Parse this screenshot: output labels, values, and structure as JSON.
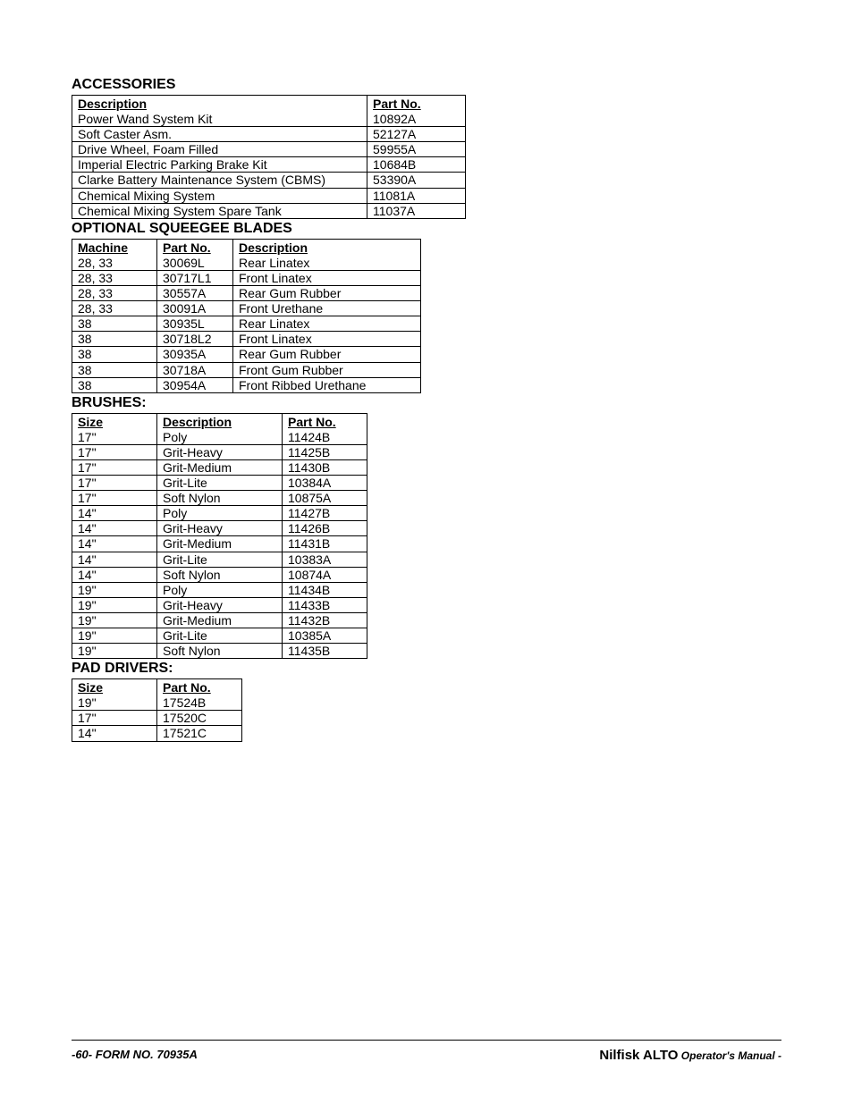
{
  "accessories": {
    "title": "ACCESSORIES",
    "headers": {
      "desc": "Description",
      "part": "Part No."
    },
    "col_widths": [
      "330px",
      "110px"
    ],
    "rows": [
      {
        "desc": "Power Wand System Kit",
        "part": "10892A"
      },
      {
        "desc": "Soft Caster Asm.",
        "part": "52127A"
      },
      {
        "desc": "Drive Wheel, Foam Filled",
        "part": "59955A"
      },
      {
        "desc": "Imperial Electric Parking Brake Kit",
        "part": "10684B"
      },
      {
        "desc": "Clarke Battery Maintenance System (CBMS)",
        "part": "53390A"
      },
      {
        "desc": "Chemical Mixing System",
        "part": "11081A"
      },
      {
        "desc": "Chemical Mixing System Spare Tank",
        "part": "11037A"
      }
    ]
  },
  "squeegee": {
    "title": "OPTIONAL SQUEEGEE BLADES",
    "headers": {
      "machine": "Machine",
      "part": "Part No.",
      "desc": "Description"
    },
    "col_widths": [
      "95px",
      "85px",
      "210px"
    ],
    "rows": [
      {
        "machine": "28, 33",
        "part": "30069L",
        "desc": "Rear Linatex"
      },
      {
        "machine": "28, 33",
        "part": "30717L1",
        "desc": "Front Linatex"
      },
      {
        "machine": "28, 33",
        "part": "30557A",
        "desc": "Rear Gum Rubber"
      },
      {
        "machine": "28, 33",
        "part": "30091A",
        "desc": "Front Urethane"
      },
      {
        "machine": "38",
        "part": "30935L",
        "desc": "Rear Linatex"
      },
      {
        "machine": "38",
        "part": "30718L2",
        "desc": "Front Linatex"
      },
      {
        "machine": "38",
        "part": "30935A",
        "desc": "Rear Gum Rubber"
      },
      {
        "machine": "38",
        "part": "30718A",
        "desc": "Front Gum Rubber"
      },
      {
        "machine": "38",
        "part": "30954A",
        "desc": "Front Ribbed Urethane"
      }
    ]
  },
  "brushes": {
    "title": "BRUSHES:",
    "headers": {
      "size": "Size",
      "desc": "Description",
      "part": "Part No."
    },
    "col_widths": [
      "95px",
      "140px",
      "95px"
    ],
    "rows": [
      {
        "size": "17\"",
        "desc": "Poly",
        "part": "11424B"
      },
      {
        "size": "17\"",
        "desc": "Grit-Heavy",
        "part": "11425B"
      },
      {
        "size": "17\"",
        "desc": "Grit-Medium",
        "part": "11430B"
      },
      {
        "size": "17\"",
        "desc": "Grit-Lite",
        "part": "10384A"
      },
      {
        "size": "17\"",
        "desc": "Soft Nylon",
        "part": "10875A"
      },
      {
        "size": "14\"",
        "desc": "Poly",
        "part": "11427B"
      },
      {
        "size": "14\"",
        "desc": "Grit-Heavy",
        "part": "11426B"
      },
      {
        "size": "14\"",
        "desc": "Grit-Medium",
        "part": "11431B"
      },
      {
        "size": "14\"",
        "desc": "Grit-Lite",
        "part": "10383A"
      },
      {
        "size": "14\"",
        "desc": "Soft Nylon",
        "part": "10874A"
      },
      {
        "size": "19\"",
        "desc": "Poly",
        "part": "11434B"
      },
      {
        "size": "19\"",
        "desc": "Grit-Heavy",
        "part": "11433B"
      },
      {
        "size": "19\"",
        "desc": "Grit-Medium",
        "part": "11432B"
      },
      {
        "size": "19\"",
        "desc": "Grit-Lite",
        "part": "10385A"
      },
      {
        "size": "19\"",
        "desc": "Soft Nylon",
        "part": "11435B"
      }
    ]
  },
  "pad_drivers": {
    "title": "PAD DRIVERS:",
    "headers": {
      "size": "Size",
      "part": "Part No."
    },
    "col_widths": [
      "95px",
      "95px"
    ],
    "rows": [
      {
        "size": "19\"",
        "part": "17524B"
      },
      {
        "size": "17\"",
        "part": "17520C"
      },
      {
        "size": "14\"",
        "part": "17521C"
      }
    ]
  },
  "footer": {
    "left": "-60-  FORM NO. 70935A",
    "brand": "Nilfisk ALTO",
    "sub": " Operator's Manual -"
  }
}
